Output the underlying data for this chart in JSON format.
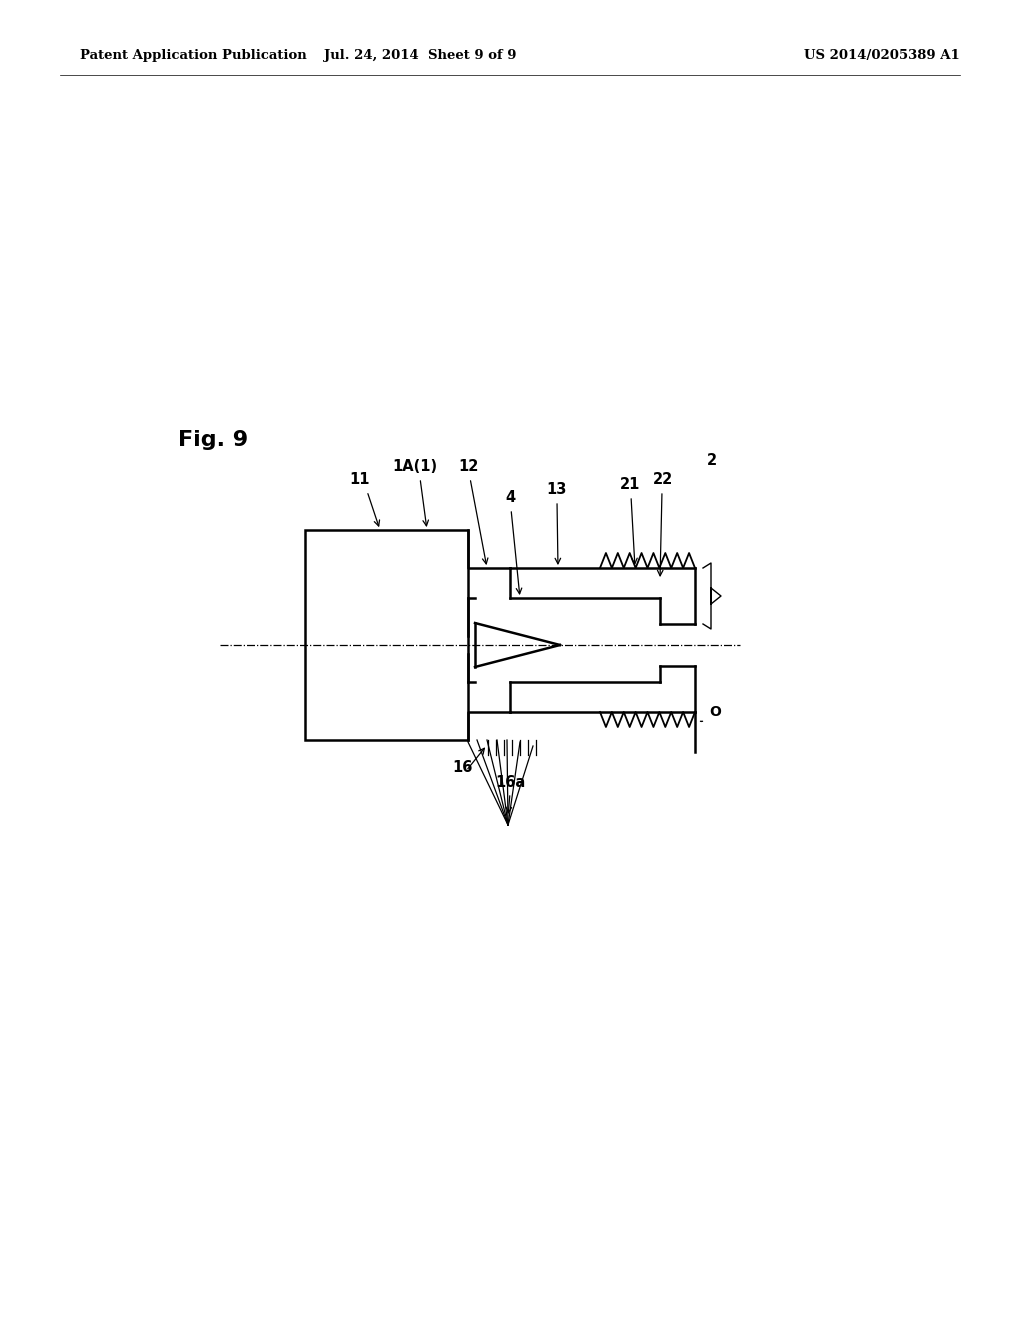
{
  "bg_color": "#ffffff",
  "header_left": "Patent Application Publication",
  "header_center": "Jul. 24, 2014  Sheet 9 of 9",
  "header_right": "US 2014/0205389 A1",
  "fig_label": "Fig. 9"
}
